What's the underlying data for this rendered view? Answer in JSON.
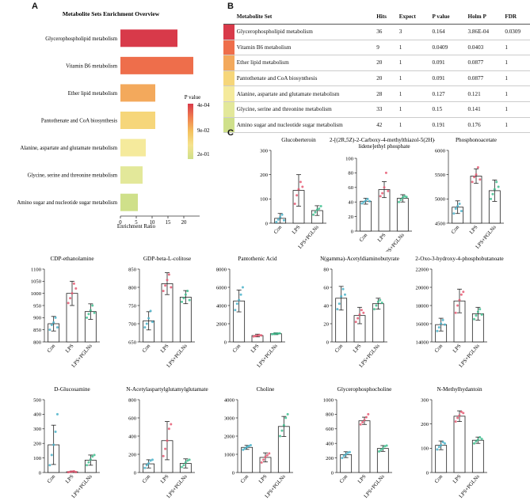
{
  "panelA": {
    "letter": "A",
    "title": "Metabolite Sets Enrichment Overview",
    "xlabel": "Enrichment Ratio",
    "legend_title": "P value",
    "legend_ticks": [
      "4e-04",
      "9e-02",
      "2e-01"
    ],
    "legend_colors": [
      "#d83a4a",
      "#f07f4f",
      "#f4c25e",
      "#f5e38f",
      "#cfe08a"
    ]
  },
  "panelB": {
    "letter": "B",
    "headers": [
      "Metabolite Set",
      "Hits",
      "Expect",
      "P value",
      "Holm P",
      "FDR"
    ],
    "rows": [
      {
        "set": "Glycerophospholipid metabolism",
        "hits": "36",
        "expect": "3",
        "p": "0.164",
        "holm": "3.86E-04",
        "fdr": "0.0309",
        "color": "#d83a4a"
      },
      {
        "set": "Vitamin B6 metabolism",
        "hits": "9",
        "expect": "1",
        "p": "0.0409",
        "holm": "0.0403",
        "fdr": "1",
        "color": "#ee6e4b"
      },
      {
        "set": "Ether lipid metabolism",
        "hits": "20",
        "expect": "1",
        "p": "0.091",
        "holm": "0.0877",
        "fdr": "1",
        "color": "#f3a95c"
      },
      {
        "set": "Pantothenate and CoA biosynthesis",
        "hits": "20",
        "expect": "1",
        "p": "0.091",
        "holm": "0.0877",
        "fdr": "1",
        "color": "#f6d67a"
      },
      {
        "set": "Alanine, aspartate and glutamate metabolism",
        "hits": "28",
        "expect": "1",
        "p": "0.127",
        "holm": "0.121",
        "fdr": "1",
        "color": "#f5ea9c"
      },
      {
        "set": "Glycine, serine and threonine metabolism",
        "hits": "33",
        "expect": "1",
        "p": "0.15",
        "holm": "0.141",
        "fdr": "1",
        "color": "#e3e89a"
      },
      {
        "set": "Amino sugar and nucleotide sugar metabolism",
        "hits": "42",
        "expect": "1",
        "p": "0.191",
        "holm": "0.176",
        "fdr": "1",
        "color": "#cfe08a"
      }
    ]
  },
  "panelC": {
    "letter": "C",
    "groups": [
      "Con",
      "LPS",
      "LPS+PGLNs"
    ]
  },
  "chart_data": [
    {
      "type": "bar",
      "title": "Metabolite Sets Enrichment Overview",
      "xlabel": "Enrichment Ratio",
      "ylabel": "",
      "orientation": "horizontal",
      "categories": [
        "Glycerophospholipid metabolism",
        "Vitamin B6 metabolism",
        "Ether lipid metabolism",
        "Pantothenate and CoA biosynthesis",
        "Alanine, aspartate and glutamate metabolism",
        "Glycine, serine and threonine metabolism",
        "Amino sugar and nucleotide sugar metabolism"
      ],
      "values": [
        18,
        23,
        11,
        11,
        8,
        7,
        5.5
      ],
      "colors": [
        "#d83a4a",
        "#ee6e4b",
        "#f3a95c",
        "#f6d67a",
        "#f5ea9c",
        "#e3e89a",
        "#cfe08a"
      ],
      "xlim": [
        0,
        25
      ],
      "xticks": [
        "0",
        "5",
        "10",
        "15",
        "20"
      ]
    },
    {
      "type": "bar",
      "title": "Glucoberteroin",
      "categories": [
        "Con",
        "LPS",
        "LPS+PGLNs"
      ],
      "values": [
        20,
        135,
        52
      ],
      "errors": [
        20,
        65,
        20
      ],
      "points": [
        [
          5,
          15,
          25,
          35,
          12
        ],
        [
          80,
          115,
          140,
          170,
          150
        ],
        [
          35,
          45,
          55,
          60,
          70
        ]
      ],
      "ylim": [
        0,
        300
      ],
      "yticks": [
        "0",
        "100",
        "200",
        "300"
      ]
    },
    {
      "type": "bar",
      "title": "2-[(2R,5Z)-2-Carboxy-4-methylthiazol-5(2H)-ylidene]ethyl phosphate",
      "categories": [
        "Con",
        "LPS",
        "LPS+PGLNs"
      ],
      "values": [
        41,
        57,
        45
      ],
      "errors": [
        4,
        11,
        5
      ],
      "points": [
        [
          38,
          40,
          42,
          44,
          41
        ],
        [
          48,
          52,
          60,
          80,
          55
        ],
        [
          40,
          43,
          46,
          48,
          47
        ]
      ],
      "ylim": [
        0,
        100
      ],
      "yticks": [
        "0",
        "20",
        "40",
        "60",
        "80",
        "100"
      ]
    },
    {
      "type": "bar",
      "title": "Phosphonoacetate",
      "categories": [
        "Con",
        "LPS",
        "LPS+PGLNs"
      ],
      "values": [
        4830,
        5470,
        5170
      ],
      "errors": [
        130,
        150,
        220
      ],
      "points": [
        [
          4700,
          4800,
          4850,
          4900,
          4750
        ],
        [
          5350,
          5450,
          5500,
          5650,
          5400
        ],
        [
          5000,
          5100,
          5200,
          5350,
          5250
        ]
      ],
      "ylim": [
        4500,
        6000
      ],
      "yticks": [
        "4500",
        "5000",
        "5500",
        "6000"
      ]
    },
    {
      "type": "bar",
      "title": "CDP-ethanolamine",
      "categories": [
        "Con",
        "LPS",
        "LPS+PGLNs"
      ],
      "values": [
        875,
        1000,
        925
      ],
      "errors": [
        30,
        50,
        32
      ],
      "points": [
        [
          850,
          870,
          880,
          900,
          860
        ],
        [
          960,
          980,
          1000,
          1040,
          1020
        ],
        [
          900,
          915,
          930,
          950,
          920
        ]
      ],
      "ylim": [
        800,
        1100
      ],
      "yticks": [
        "800",
        "850",
        "900",
        "950",
        "1000",
        "1050",
        "1100"
      ]
    },
    {
      "type": "bar",
      "title": "GDP-beta-L-colitose",
      "categories": [
        "Con",
        "LPS",
        "LPS+PGLNs"
      ],
      "values": [
        708,
        810,
        773
      ],
      "errors": [
        25,
        30,
        18
      ],
      "points": [
        [
          690,
          700,
          715,
          735,
          705
        ],
        [
          790,
          805,
          820,
          835,
          800
        ],
        [
          760,
          770,
          780,
          790,
          765
        ]
      ],
      "ylim": [
        650,
        850
      ],
      "yticks": [
        "650",
        "700",
        "750",
        "800",
        "850"
      ]
    },
    {
      "type": "bar",
      "title": "Pantothenic Acid",
      "categories": [
        "Con",
        "LPS",
        "LPS+PGLNs"
      ],
      "values": [
        4500,
        700,
        900
      ],
      "errors": [
        1200,
        150,
        100
      ],
      "points": [
        [
          3500,
          4200,
          4600,
          5200,
          6000
        ],
        [
          600,
          650,
          700,
          750,
          720
        ],
        [
          850,
          880,
          900,
          920,
          950
        ]
      ],
      "ylim": [
        0,
        8000
      ],
      "yticks": [
        "0",
        "2000",
        "4000",
        "6000",
        "8000"
      ]
    },
    {
      "type": "bar",
      "title": "N(gamma)-Acetyldiaminobutyrate",
      "categories": [
        "Con",
        "LPS",
        "LPS+PGLNs"
      ],
      "values": [
        48,
        29,
        42
      ],
      "errors": [
        13,
        9,
        6
      ],
      "points": [
        [
          36,
          42,
          50,
          58,
          52
        ],
        [
          22,
          26,
          30,
          35,
          32
        ],
        [
          36,
          40,
          44,
          46,
          43
        ]
      ],
      "ylim": [
        0,
        80
      ],
      "yticks": [
        "0",
        "20",
        "40",
        "60",
        "80"
      ]
    },
    {
      "type": "bar",
      "title": "2-Oxo-3-hydroxy-4-phosphobutanoate",
      "categories": [
        "Con",
        "LPS",
        "LPS+PGLNs"
      ],
      "values": [
        15900,
        18500,
        17100
      ],
      "errors": [
        700,
        1300,
        700
      ],
      "points": [
        [
          15200,
          15600,
          16000,
          16400,
          15900
        ],
        [
          17200,
          18000,
          18600,
          19200,
          19500
        ],
        [
          16500,
          16900,
          17300,
          17600,
          17000
        ]
      ],
      "ylim": [
        14000,
        22000
      ],
      "yticks": [
        "14000",
        "16000",
        "18000",
        "20000",
        "22000"
      ]
    },
    {
      "type": "bar",
      "title": "D-Glucosamine",
      "categories": [
        "Con",
        "LPS",
        "LPS+PGLNs"
      ],
      "values": [
        190,
        5,
        85
      ],
      "errors": [
        135,
        5,
        35
      ],
      "points": [
        [
          50,
          120,
          190,
          280,
          400
        ],
        [
          2,
          4,
          6,
          8,
          3
        ],
        [
          50,
          70,
          90,
          110,
          120
        ]
      ],
      "ylim": [
        0,
        500
      ],
      "yticks": [
        "0",
        "100",
        "200",
        "300",
        "400",
        "500"
      ]
    },
    {
      "type": "bar",
      "title": "N-Acetylaspartylglutamylglutamate",
      "categories": [
        "Con",
        "LPS",
        "LPS+PGLNs"
      ],
      "values": [
        95,
        350,
        100
      ],
      "errors": [
        45,
        210,
        50
      ],
      "points": [
        [
          50,
          80,
          100,
          130,
          140
        ],
        [
          180,
          260,
          350,
          480,
          530
        ],
        [
          60,
          80,
          110,
          130,
          140
        ]
      ],
      "ylim": [
        0,
        800
      ],
      "yticks": [
        "0",
        "200",
        "400",
        "600",
        "800"
      ]
    },
    {
      "type": "bar",
      "title": "Choline",
      "categories": [
        "Con",
        "LPS",
        "LPS+PGLNs"
      ],
      "values": [
        1380,
        830,
        2530
      ],
      "errors": [
        110,
        250,
        550
      ],
      "points": [
        [
          1250,
          1320,
          1400,
          1450,
          1500
        ],
        [
          550,
          700,
          850,
          950,
          1050
        ],
        [
          2000,
          2300,
          2600,
          3000,
          3200
        ]
      ],
      "ylim": [
        0,
        4000
      ],
      "yticks": [
        "0",
        "1000",
        "2000",
        "3000",
        "4000"
      ]
    },
    {
      "type": "bar",
      "title": "Glycerophosphocholine",
      "categories": [
        "Con",
        "LPS",
        "LPS+PGLNs"
      ],
      "values": [
        245,
        710,
        330
      ],
      "errors": [
        40,
        50,
        40
      ],
      "points": [
        [
          200,
          230,
          250,
          270,
          280
        ],
        [
          660,
          690,
          720,
          760,
          800
        ],
        [
          290,
          310,
          330,
          360,
          370
        ]
      ],
      "ylim": [
        0,
        1000
      ],
      "yticks": [
        "0",
        "200",
        "400",
        "600",
        "800",
        "1000"
      ]
    },
    {
      "type": "bar",
      "title": "N-Methylhydantoin",
      "categories": [
        "Con",
        "LPS",
        "LPS+PGLNs"
      ],
      "values": [
        112,
        232,
        133
      ],
      "errors": [
        18,
        22,
        13
      ],
      "points": [
        [
          95,
          105,
          112,
          125,
          120
        ],
        [
          210,
          225,
          235,
          250,
          245
        ],
        [
          120,
          128,
          135,
          145,
          138
        ]
      ],
      "ylim": [
        0,
        300
      ],
      "yticks": [
        "0",
        "100",
        "200",
        "300"
      ]
    }
  ]
}
